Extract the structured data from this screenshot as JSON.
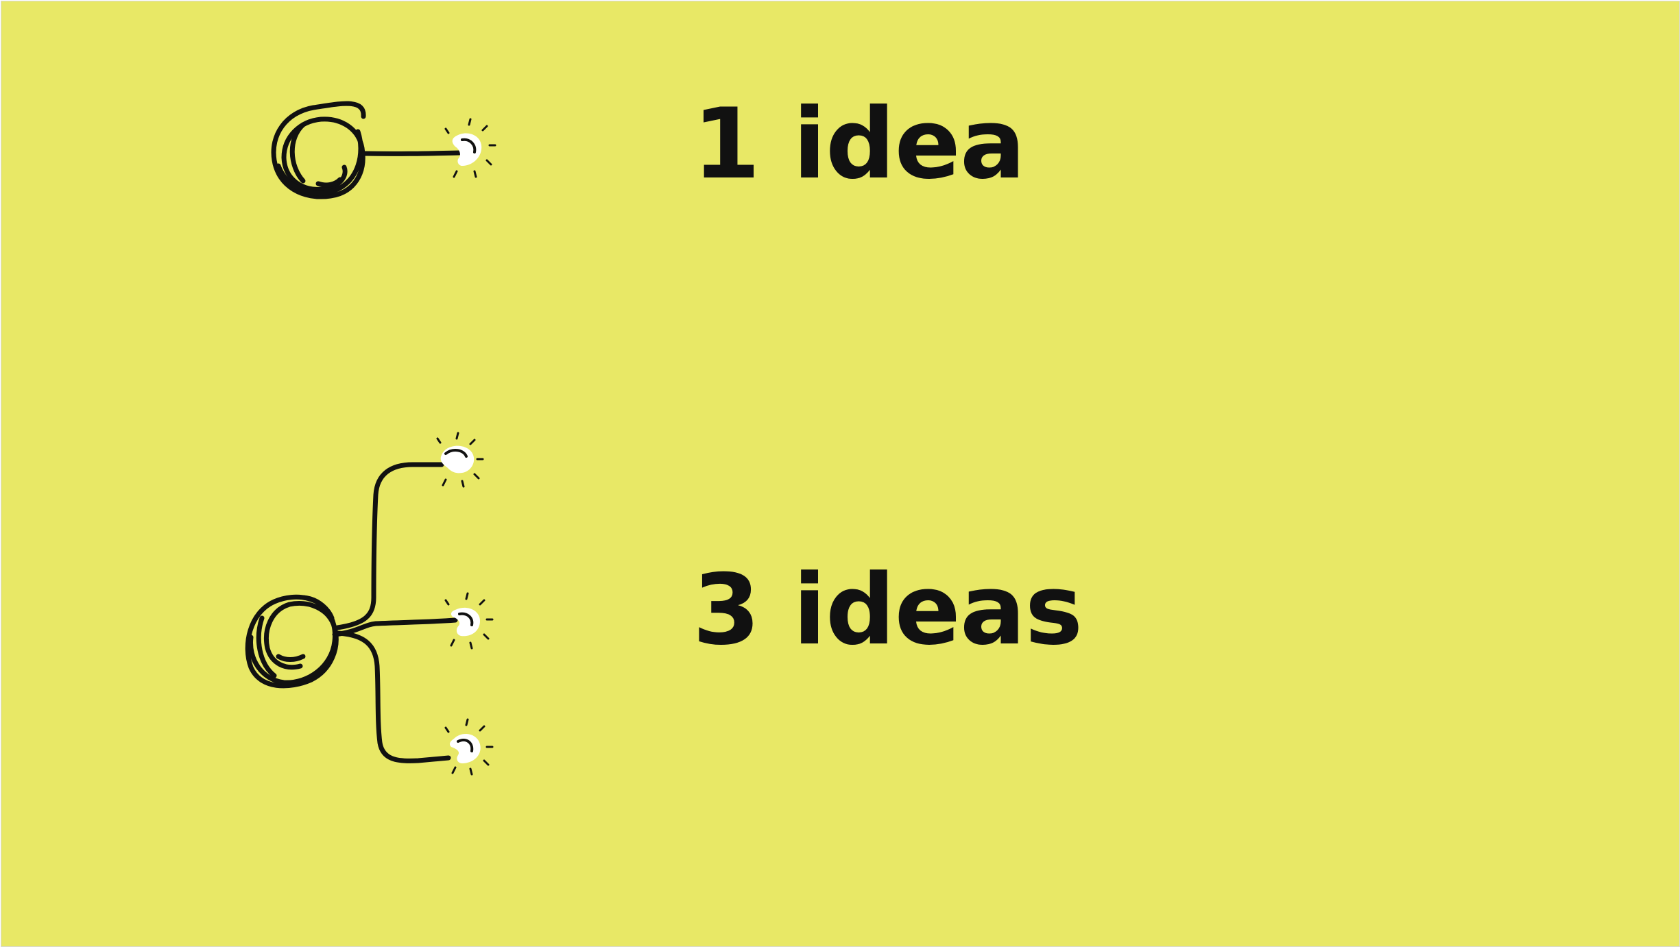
{
  "colors": {
    "background": "#e8e866",
    "ink": "#111111",
    "bulb": "#ffffff"
  },
  "labels": {
    "one": "1 idea",
    "three": "3 ideas"
  },
  "icons": {
    "source": "circle-scribble-icon",
    "bulb": "lightbulb-glow-icon"
  },
  "diagrams": [
    {
      "label_key": "one",
      "idea_count": 1
    },
    {
      "label_key": "three",
      "idea_count": 3
    }
  ]
}
